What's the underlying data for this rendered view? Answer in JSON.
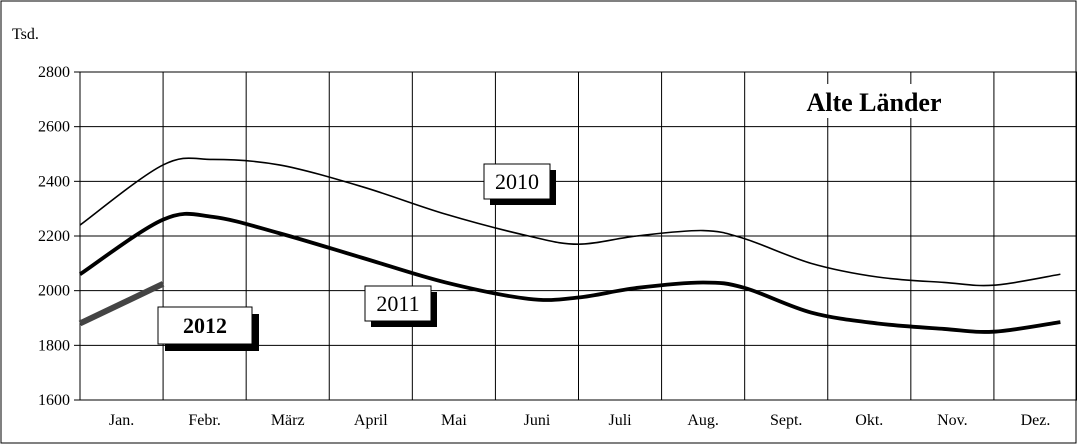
{
  "chart_data": {
    "type": "line",
    "title": "Alte Länder",
    "ylabel": "Tsd.",
    "xlabel": "",
    "categories": [
      "Jan.",
      "Febr.",
      "März",
      "April",
      "Mai",
      "Juni",
      "Juli",
      "Aug.",
      "Sept.",
      "Okt.",
      "Nov.",
      "Dez."
    ],
    "ylim": [
      1600,
      2800
    ],
    "yticks": [
      "1600",
      "1800",
      "2000",
      "2200",
      "2400",
      "2600",
      "2800"
    ],
    "grid": true,
    "legend": "inline",
    "series": [
      {
        "name": "2010",
        "values": [
          2240,
          2460,
          2480,
          2460,
          2380,
          2280,
          2200,
          2170,
          2200,
          2220,
          2190,
          2100,
          2050,
          2030,
          2020,
          2060
        ],
        "x": [
          0.0,
          1.0,
          1.6,
          2.4,
          3.4,
          4.4,
          5.4,
          6.0,
          6.7,
          7.5,
          8.0,
          8.8,
          9.6,
          10.4,
          11.0,
          11.8
        ],
        "color": "#000000"
      },
      {
        "name": "2011",
        "values": [
          2060,
          2260,
          2270,
          2210,
          2120,
          2030,
          1970,
          1975,
          2010,
          2030,
          2010,
          1920,
          1880,
          1860,
          1850,
          1885
        ],
        "x": [
          0.0,
          1.0,
          1.6,
          2.4,
          3.4,
          4.4,
          5.4,
          6.0,
          6.7,
          7.5,
          8.0,
          8.8,
          9.6,
          10.4,
          11.0,
          11.8
        ],
        "color": "#000000"
      },
      {
        "name": "2012",
        "values": [
          1880,
          2025
        ],
        "x": [
          0.0,
          1.0
        ],
        "color": "#444444"
      }
    ]
  }
}
